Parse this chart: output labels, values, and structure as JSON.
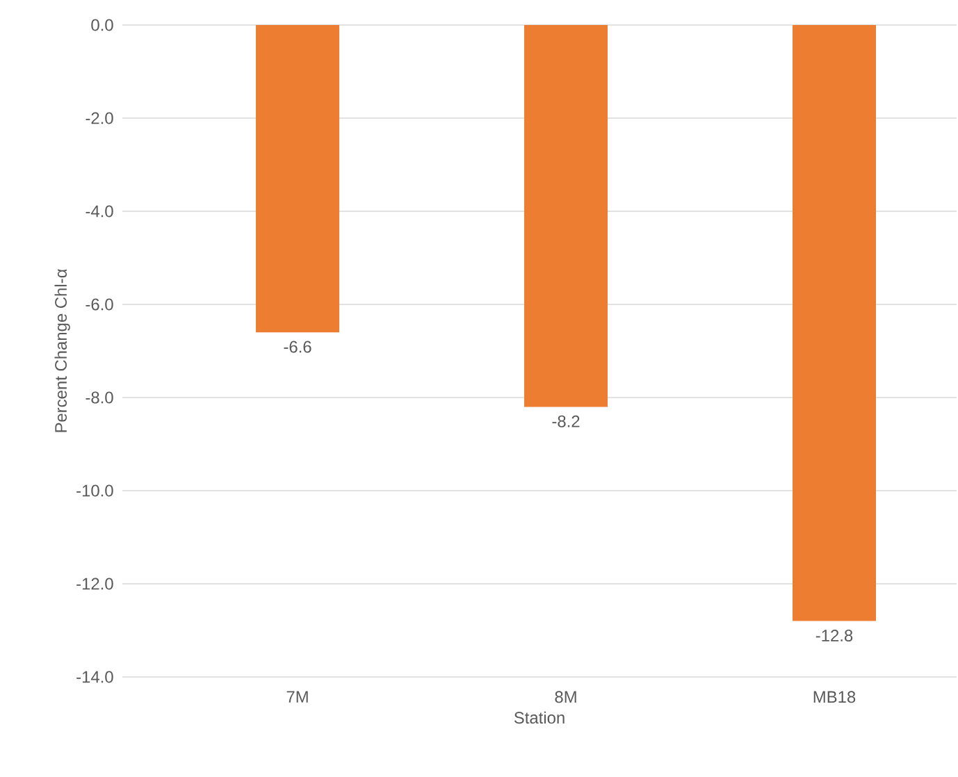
{
  "chart_data": {
    "type": "bar",
    "xlabel": "Station",
    "ylabel": "Percent Change Chl-α",
    "categories": [
      "7M",
      "8M",
      "MB18"
    ],
    "values": [
      -6.6,
      -8.2,
      -12.8
    ],
    "color": "#ed7d31",
    "ylim": [
      -14,
      0
    ],
    "yticks": [
      {
        "value": 0,
        "label": "0.0"
      },
      {
        "value": -2,
        "label": "-2.0"
      },
      {
        "value": -4,
        "label": "-4.0"
      },
      {
        "value": -6,
        "label": "-6.0"
      },
      {
        "value": -8,
        "label": "-8.0"
      },
      {
        "value": -10,
        "label": "-10.0"
      },
      {
        "value": -12,
        "label": "-12.0"
      },
      {
        "value": -14,
        "label": "-14.0"
      }
    ],
    "grid": "y",
    "data_labels": true
  }
}
